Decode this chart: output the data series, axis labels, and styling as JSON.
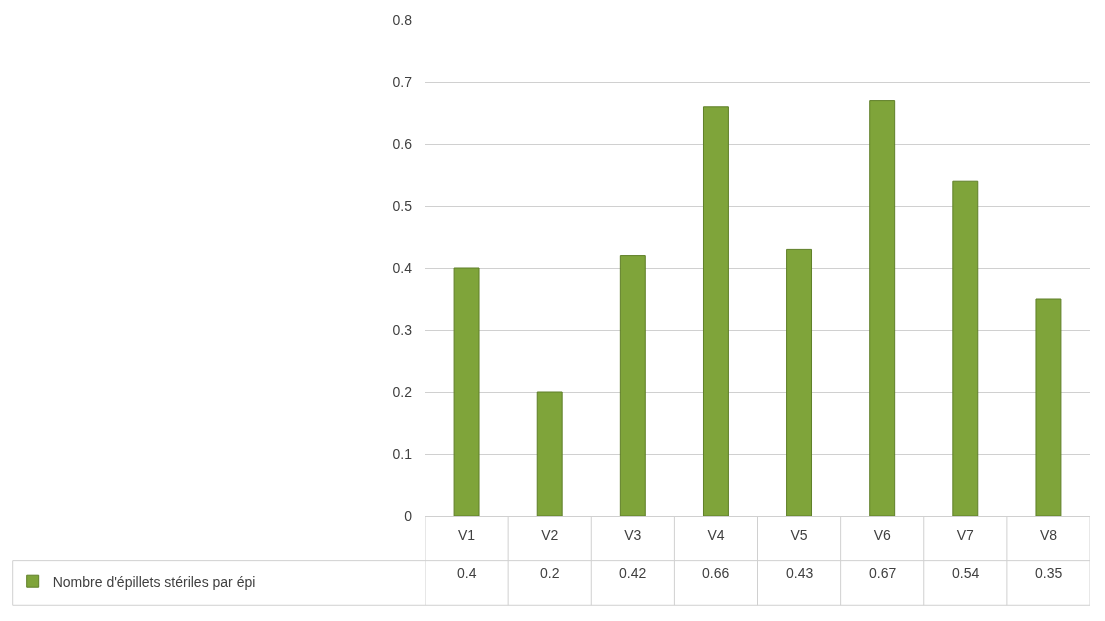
{
  "chart_data": {
    "type": "bar",
    "categories": [
      "V1",
      "V2",
      "V3",
      "V4",
      "V5",
      "V6",
      "V7",
      "V8"
    ],
    "series": [
      {
        "name": "Nombre d'épillets stériles par épi",
        "color": "#7fa43a",
        "values": [
          0.4,
          0.2,
          0.42,
          0.66,
          0.43,
          0.67,
          0.54,
          0.35
        ]
      }
    ],
    "ylim": [
      0,
      0.8
    ],
    "yticks": [
      0,
      0.1,
      0.2,
      0.3,
      0.4,
      0.5,
      0.6,
      0.7,
      0.8
    ],
    "grid": "y",
    "legend": "bottom left",
    "data_labels": true
  }
}
